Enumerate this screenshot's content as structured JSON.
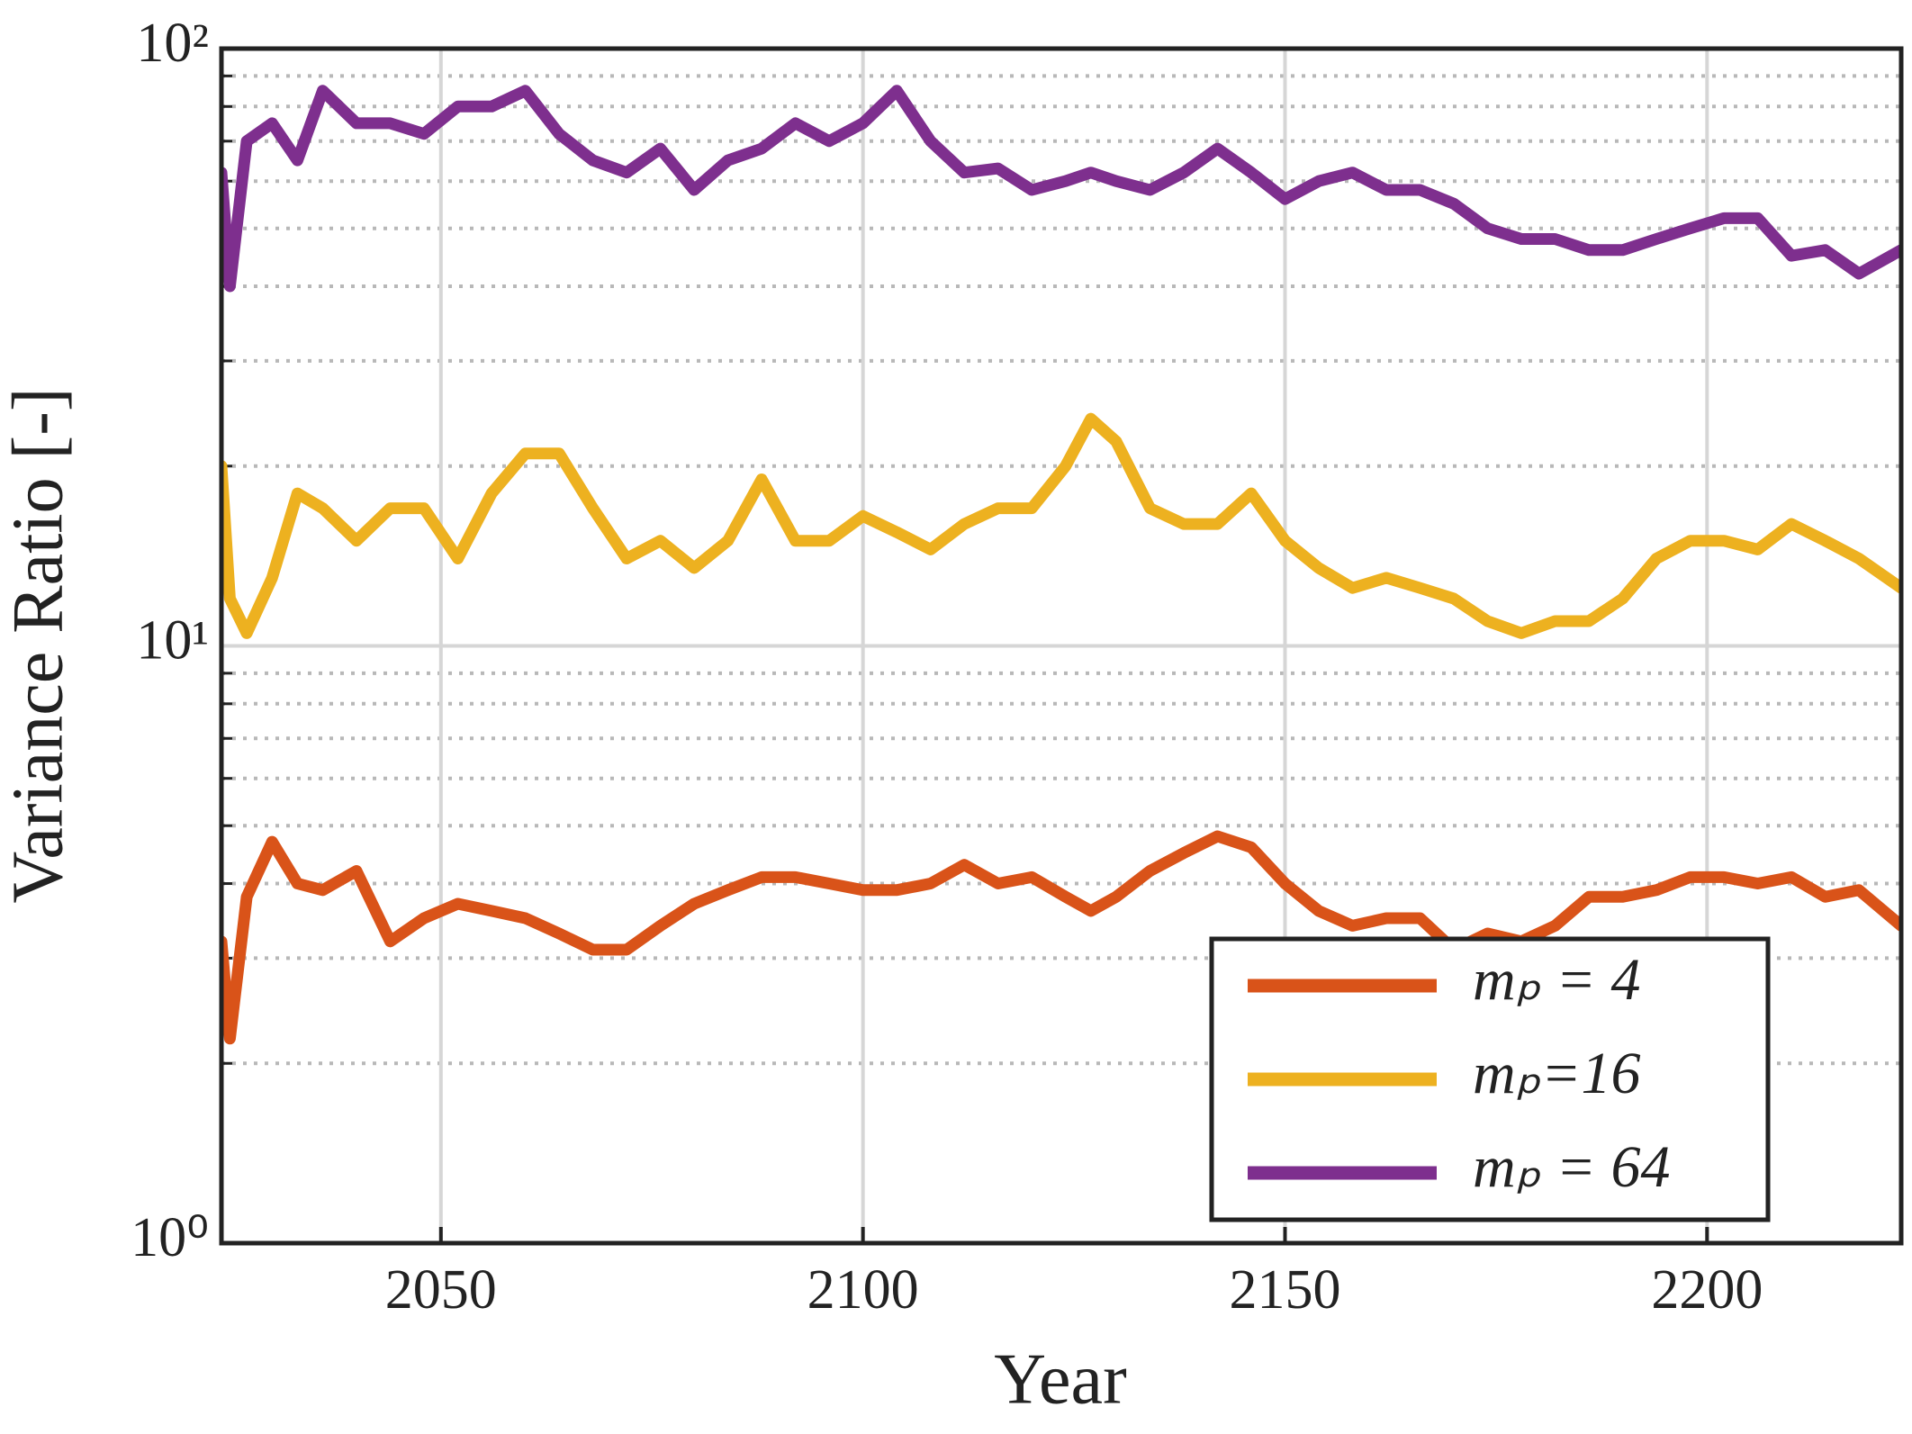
{
  "chart_data": {
    "type": "line",
    "xlabel": "Year",
    "ylabel": "Variance Ratio [-]",
    "x": [
      2024,
      2025,
      2027,
      2030,
      2033,
      2036,
      2040,
      2044,
      2048,
      2052,
      2056,
      2060,
      2064,
      2068,
      2072,
      2076,
      2080,
      2084,
      2088,
      2092,
      2096,
      2100,
      2104,
      2108,
      2112,
      2116,
      2120,
      2124,
      2127,
      2130,
      2134,
      2138,
      2142,
      2146,
      2150,
      2154,
      2158,
      2162,
      2166,
      2170,
      2174,
      2178,
      2182,
      2186,
      2190,
      2194,
      2198,
      2202,
      2206,
      2210,
      2214,
      2218,
      2223
    ],
    "series": [
      {
        "name": "mₚ = 4",
        "color": "#D95319",
        "values": [
          3.2,
          2.2,
          3.8,
          4.7,
          4.0,
          3.9,
          4.2,
          3.2,
          3.5,
          3.7,
          3.6,
          3.5,
          3.3,
          3.1,
          3.1,
          3.4,
          3.7,
          3.9,
          4.1,
          4.1,
          4.0,
          3.9,
          3.9,
          4.0,
          4.3,
          4.0,
          4.1,
          3.8,
          3.6,
          3.8,
          4.2,
          4.5,
          4.8,
          4.6,
          4.0,
          3.6,
          3.4,
          3.5,
          3.5,
          3.1,
          3.3,
          3.2,
          3.4,
          3.8,
          3.8,
          3.9,
          4.1,
          4.1,
          4.0,
          4.1,
          3.8,
          3.9,
          3.4
        ]
      },
      {
        "name": "mₚ=16",
        "color": "#EDB120",
        "values": [
          20,
          12,
          10.5,
          13,
          18,
          17,
          15,
          17,
          17,
          14,
          18,
          21,
          21,
          17,
          14,
          15,
          13.5,
          15,
          19,
          15,
          15,
          16.5,
          15.5,
          14.5,
          16,
          17,
          17,
          20,
          24,
          22,
          17,
          16,
          16,
          18,
          15,
          13.5,
          12.5,
          13,
          12.5,
          12,
          11,
          10.5,
          11,
          11,
          12,
          14,
          15,
          15,
          14.5,
          16,
          15,
          14,
          12.5
        ]
      },
      {
        "name": "mₚ = 64",
        "color": "#7E2F8E",
        "values": [
          62,
          40,
          70,
          75,
          65,
          85,
          75,
          75,
          72,
          80,
          80,
          85,
          72,
          65,
          62,
          68,
          58,
          65,
          68,
          75,
          70,
          75,
          85,
          70,
          62,
          63,
          58,
          60,
          62,
          60,
          58,
          62,
          68,
          62,
          56,
          60,
          62,
          58,
          58,
          55,
          50,
          48,
          48,
          46,
          46,
          48,
          50,
          52,
          52,
          45,
          46,
          42,
          46
        ]
      }
    ],
    "xlim": [
      2024,
      2223
    ],
    "xticks": [
      2050,
      2100,
      2150,
      2200
    ],
    "ylim": [
      1,
      100
    ],
    "log_y": true,
    "yticks": [
      {
        "value": 1,
        "label": "10⁰"
      },
      {
        "value": 10,
        "label": "10¹"
      },
      {
        "value": 100,
        "label": "10²"
      }
    ],
    "yminorticks": [
      2,
      3,
      4,
      5,
      6,
      7,
      8,
      9,
      20,
      30,
      40,
      50,
      60,
      70,
      80,
      90
    ],
    "grid": true,
    "legend": "lower right"
  }
}
